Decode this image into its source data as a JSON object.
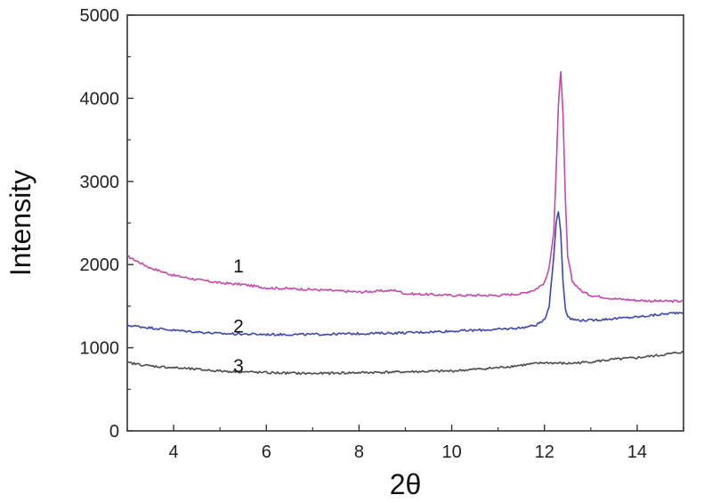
{
  "chart_data": {
    "type": "line",
    "title": "",
    "xlabel": "2θ",
    "ylabel": "Intensity",
    "xlim": [
      3,
      15
    ],
    "ylim": [
      0,
      5000
    ],
    "xticks": [
      4,
      6,
      8,
      10,
      12,
      14
    ],
    "yticks": [
      0,
      1000,
      2000,
      3000,
      4000,
      5000
    ],
    "grid": false,
    "legend": "inline numeric labels near curves",
    "series": [
      {
        "label": "1",
        "color": "#c04aa8",
        "label_pos": [
          5.4,
          1990
        ],
        "x": [
          3.0,
          3.5,
          4.0,
          4.5,
          5.0,
          5.5,
          6.0,
          7.0,
          8.0,
          8.8,
          9.0,
          10.0,
          11.0,
          11.5,
          11.8,
          12.0,
          12.1,
          12.2,
          12.25,
          12.3,
          12.35,
          12.4,
          12.45,
          12.5,
          12.6,
          12.8,
          13.0,
          13.5,
          14.0,
          14.5,
          15.0
        ],
        "values": [
          2100,
          1960,
          1870,
          1820,
          1780,
          1760,
          1720,
          1700,
          1670,
          1690,
          1650,
          1630,
          1630,
          1650,
          1700,
          1780,
          1950,
          2400,
          3100,
          3900,
          4330,
          3800,
          2800,
          2100,
          1800,
          1680,
          1630,
          1590,
          1570,
          1560,
          1560
        ]
      },
      {
        "label": "2",
        "color": "#3d47a8",
        "label_pos": [
          5.4,
          1270
        ],
        "x": [
          3.0,
          3.5,
          4.0,
          5.0,
          6.0,
          7.0,
          8.0,
          9.0,
          10.0,
          11.0,
          11.5,
          11.8,
          12.0,
          12.1,
          12.2,
          12.25,
          12.3,
          12.35,
          12.4,
          12.45,
          12.5,
          12.6,
          12.8,
          13.0,
          13.5,
          14.0,
          14.5,
          15.0
        ],
        "values": [
          1270,
          1240,
          1210,
          1170,
          1160,
          1160,
          1170,
          1180,
          1200,
          1220,
          1240,
          1270,
          1330,
          1500,
          2100,
          2500,
          2640,
          2400,
          1800,
          1480,
          1380,
          1340,
          1330,
          1330,
          1350,
          1370,
          1400,
          1430
        ]
      },
      {
        "label": "3",
        "color": "#4a4a4a",
        "label_pos": [
          5.4,
          790
        ],
        "x": [
          3.0,
          3.5,
          4.0,
          5.0,
          6.0,
          7.0,
          8.0,
          9.0,
          10.0,
          11.0,
          11.5,
          12.0,
          12.5,
          13.0,
          13.5,
          14.0,
          14.5,
          15.0
        ],
        "values": [
          820,
          780,
          760,
          720,
          700,
          690,
          700,
          710,
          720,
          760,
          790,
          820,
          810,
          830,
          860,
          880,
          910,
          950
        ]
      }
    ]
  }
}
